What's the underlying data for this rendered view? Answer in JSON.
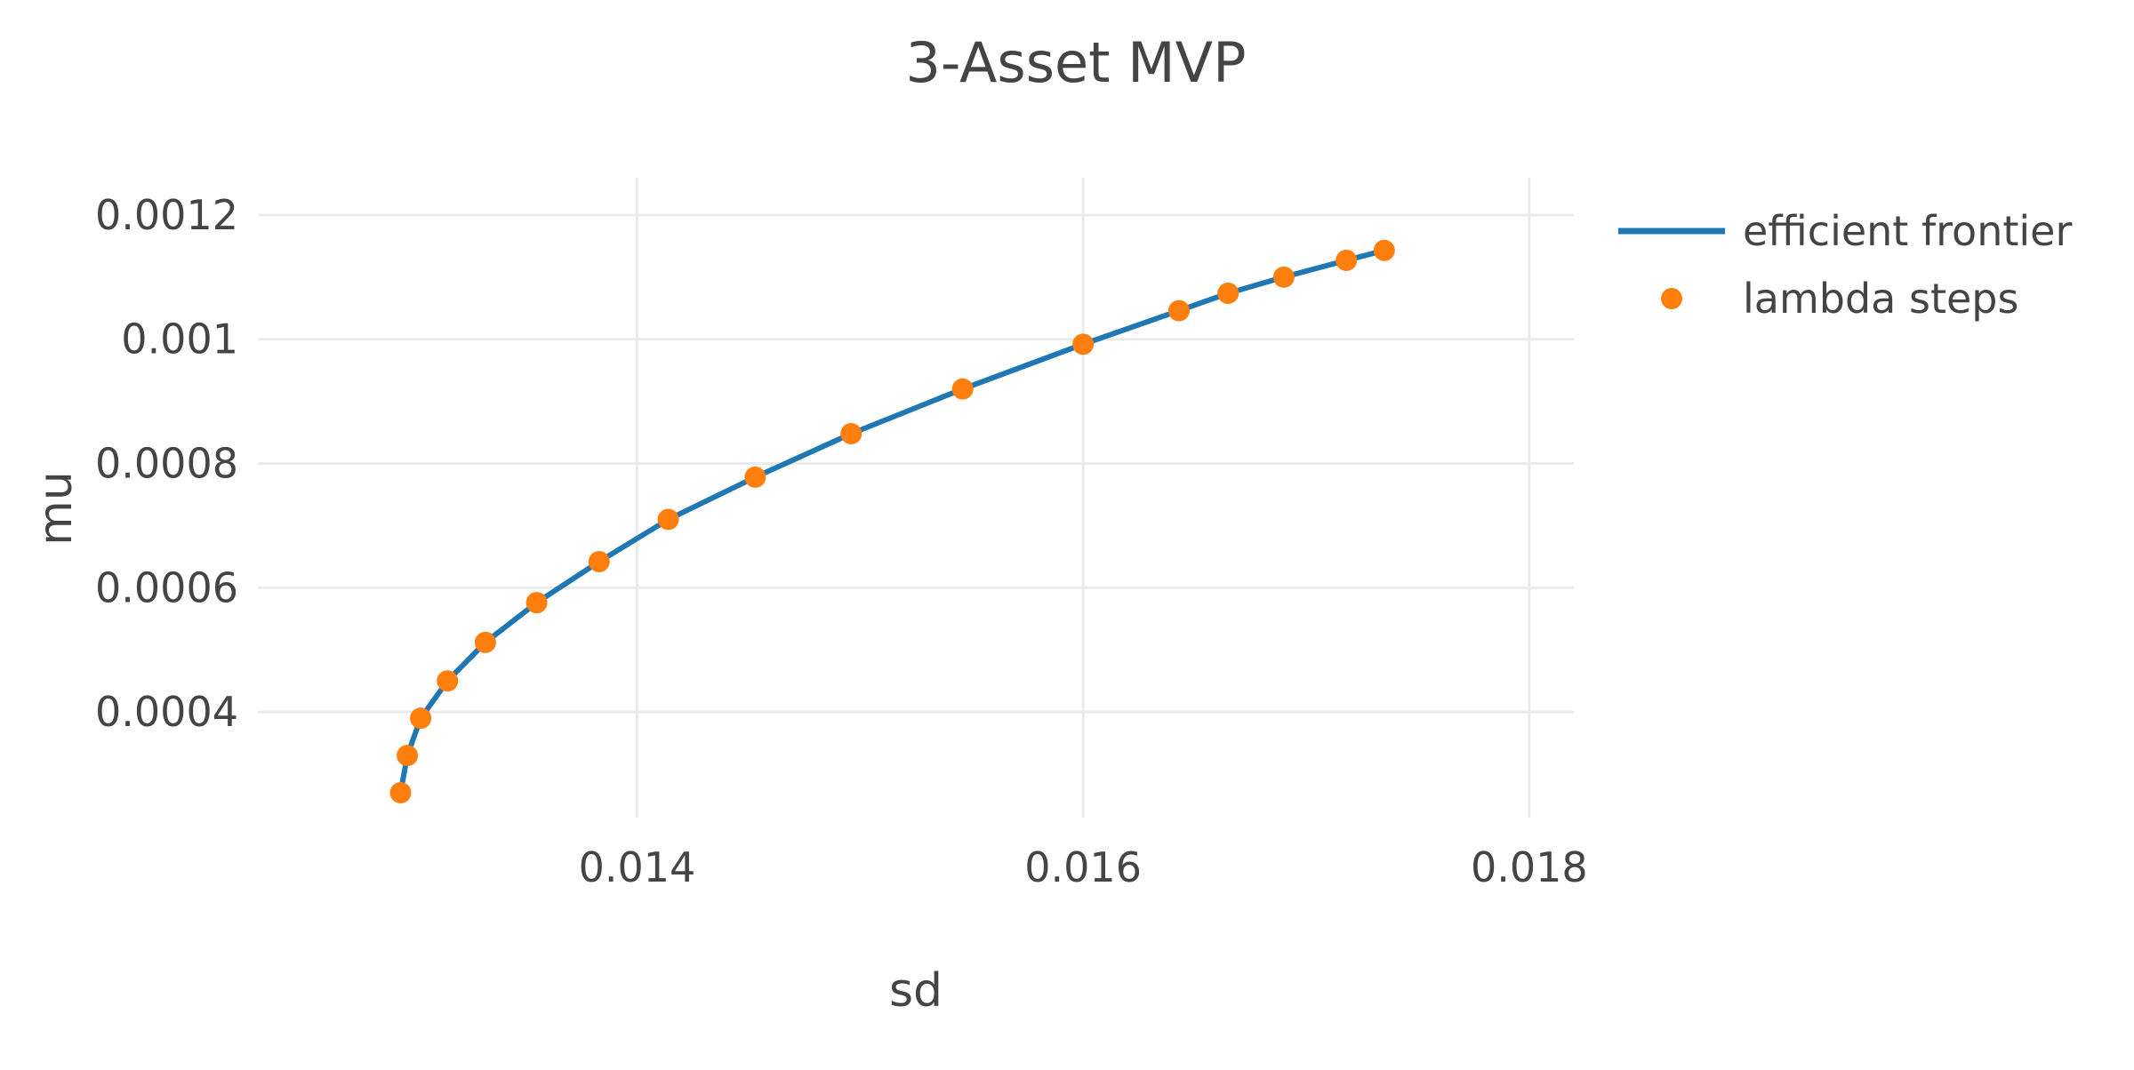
{
  "chart_data": {
    "type": "line",
    "title": "3-Asset MVP",
    "xlabel": "sd",
    "ylabel": "mu",
    "xlim": [
      0.0123,
      0.0182
    ],
    "ylim": [
      0.00023,
      0.00126
    ],
    "x_ticks": [
      0.014,
      0.016,
      0.018
    ],
    "x_tick_labels": [
      "0.014",
      "0.016",
      "0.018"
    ],
    "y_ticks": [
      0.0004,
      0.0006,
      0.0008,
      0.001,
      0.0012
    ],
    "y_tick_labels": [
      "0.0004",
      "0.0006",
      "0.0008",
      "0.001",
      "0.0012"
    ],
    "grid": true,
    "legend_position": "top-right",
    "colors": {
      "frontier": "#1f77b4",
      "steps": "#ff7f0e",
      "grid": "#ebebeb",
      "text": "#444444"
    },
    "series": [
      {
        "name": "efficient frontier",
        "mode": "line",
        "x": [
          0.01294,
          0.01297,
          0.01303,
          0.01315,
          0.01332,
          0.01355,
          0.01383,
          0.01414,
          0.01453,
          0.01496,
          0.01546,
          0.016,
          0.01643,
          0.01665,
          0.0169,
          0.01718,
          0.01735
        ],
        "y": [
          0.00027,
          0.00033,
          0.00039,
          0.00045,
          0.000512,
          0.000576,
          0.000642,
          0.00071,
          0.000778,
          0.000848,
          0.00092,
          0.000992,
          0.001046,
          0.001074,
          0.0011,
          0.001127,
          0.001143
        ]
      },
      {
        "name": "lambda steps",
        "mode": "markers",
        "x": [
          0.01294,
          0.01297,
          0.01303,
          0.01315,
          0.01332,
          0.01355,
          0.01383,
          0.01414,
          0.01453,
          0.01496,
          0.01546,
          0.016,
          0.01643,
          0.01665,
          0.0169,
          0.01718,
          0.01735
        ],
        "y": [
          0.00027,
          0.00033,
          0.00039,
          0.00045,
          0.000512,
          0.000576,
          0.000642,
          0.00071,
          0.000778,
          0.000848,
          0.00092,
          0.000992,
          0.001046,
          0.001074,
          0.0011,
          0.001127,
          0.001143
        ]
      }
    ]
  }
}
